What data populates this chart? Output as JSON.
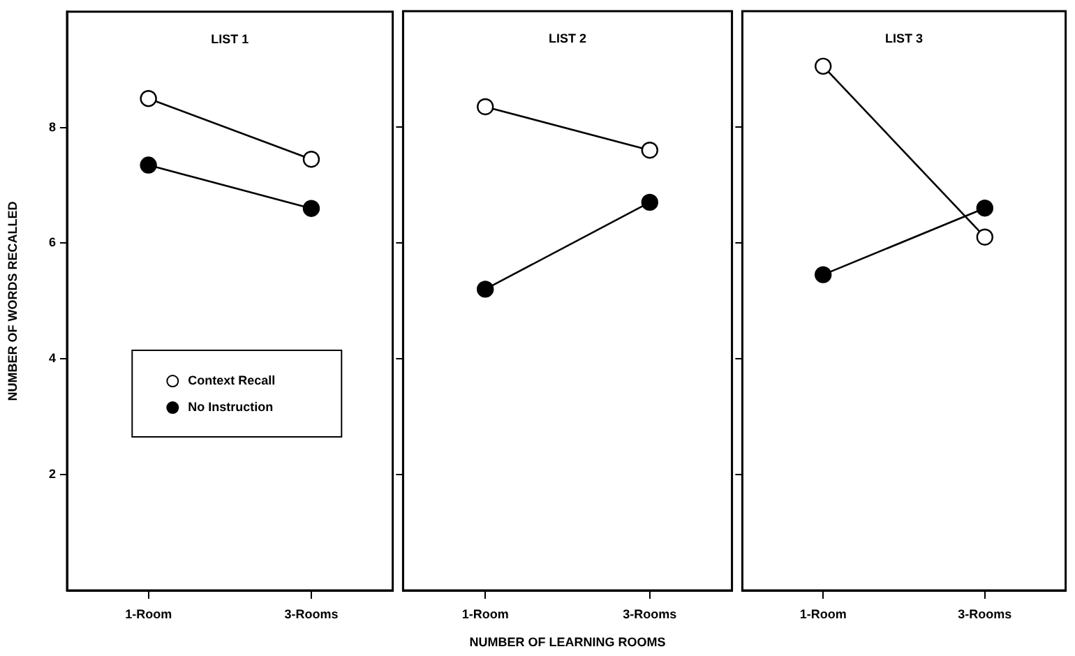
{
  "chart_data": [
    {
      "type": "line",
      "title": "LIST 1",
      "ylabel": "NUMBER OF WORDS RECALLED",
      "categories": [
        "1-Room",
        "3-Rooms"
      ],
      "ylim": [
        0,
        10
      ],
      "yticks": [
        2,
        4,
        6,
        8
      ],
      "grid": false,
      "legend": "bottom",
      "marker": "circle",
      "line_style": "solid",
      "series": [
        {
          "name": "Context Recall",
          "color": "#ffffff",
          "values": [
            8.5,
            7.45
          ]
        },
        {
          "name": "No Instruction",
          "color": "#000000",
          "values": [
            7.35,
            6.6
          ]
        }
      ]
    },
    {
      "type": "line",
      "title": "LIST 2",
      "xlabel": "NUMBER OF LEARNING ROOMS",
      "categories": [
        "1-Room",
        "3-Rooms"
      ],
      "ylim": [
        0,
        10
      ],
      "yticks": [
        2,
        4,
        6,
        8
      ],
      "tick_labels": "x",
      "grid": false,
      "legend": false,
      "marker": "circle",
      "line_style": "solid",
      "series": [
        {
          "color": "#ffffff",
          "values": [
            8.35,
            7.6
          ]
        },
        {
          "color": "#000000",
          "values": [
            5.2,
            6.7
          ]
        }
      ]
    },
    {
      "type": "line",
      "title": "LIST 3",
      "categories": [
        "1-Room",
        "3-Rooms"
      ],
      "ylim": [
        0,
        10
      ],
      "yticks": [
        2,
        4,
        6,
        8
      ],
      "tick_labels": "x",
      "grid": false,
      "legend": false,
      "marker": "circle",
      "line_style": "solid",
      "series": [
        {
          "color": "#ffffff",
          "values": [
            9.05,
            6.1
          ]
        },
        {
          "color": "#000000",
          "values": [
            5.45,
            6.6
          ]
        }
      ]
    }
  ]
}
